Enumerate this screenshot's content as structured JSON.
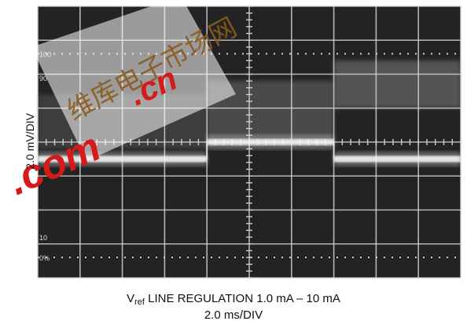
{
  "chart_data": {
    "type": "line",
    "ylabel": "2.0 mV/DIV",
    "caption": {
      "line1_prefix": "V",
      "line1_subscript": "ref",
      "line1_suffix": " LINE REGULATION 1.0 mA – 10 mA",
      "line2": "2.0 ms/DIV"
    },
    "grid": {
      "x_divisions": 10,
      "y_divisions": 8,
      "minor_ticks_per_division": 5
    },
    "graticule_labels": [
      "100",
      "90",
      "10",
      "0%"
    ],
    "series": [
      {
        "x_div": [
          0,
          4,
          4,
          7,
          7,
          10
        ],
        "y_div": [
          4.5,
          4.5,
          4.0,
          4.0,
          4.5,
          4.5
        ]
      }
    ]
  },
  "watermark": {
    "chinese": "维库电子市场网",
    "text_left": ".com",
    "text_right": ".cn"
  },
  "colors": {
    "screen_bg": "#232323",
    "grid": "#cfcfcf",
    "trace": "#f2f2f2",
    "watermark_red": "#d41a1a"
  }
}
